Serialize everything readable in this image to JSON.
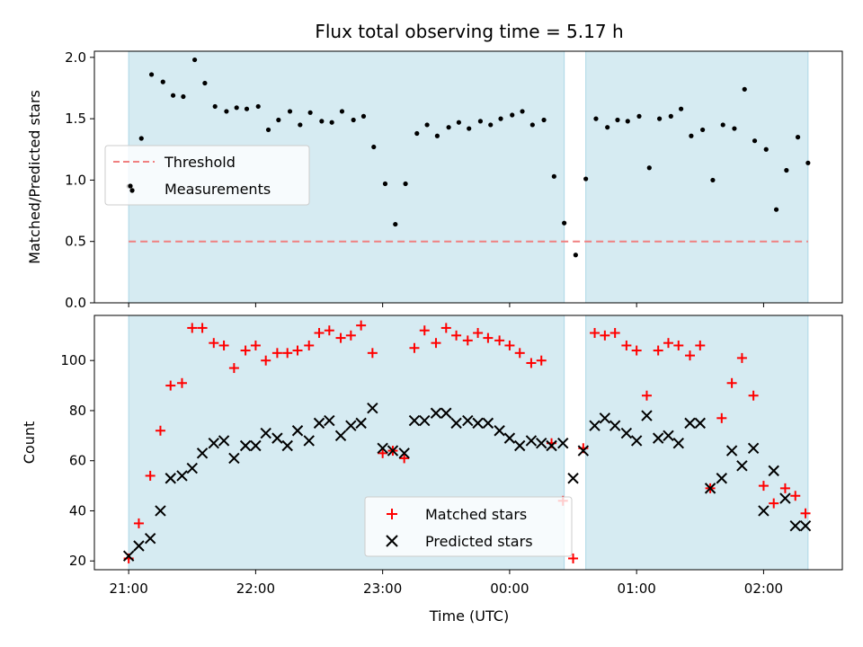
{
  "chart_data": {
    "type": "scatter",
    "title": "Flux total observing time = 5.17 h",
    "xlabel": "Time (UTC)",
    "x_ticks": [
      "21:00",
      "22:00",
      "23:00",
      "00:00",
      "01:00",
      "02:00"
    ],
    "x_tick_hours": [
      0,
      1,
      2,
      3,
      4,
      5
    ],
    "xlim": [
      -0.27,
      5.62
    ],
    "shaded_intervals": [
      [
        0.0,
        3.43
      ],
      [
        3.6,
        5.35
      ]
    ],
    "shade_color": "#add8e6",
    "top_panel": {
      "ylabel": "Matched/Predicted stars",
      "ylim": [
        0,
        2.05
      ],
      "y_ticks": [
        "0.0",
        "0.5",
        "1.0",
        "1.5",
        "2.0"
      ],
      "y_tick_values": [
        0,
        0.5,
        1.0,
        1.5,
        2.0
      ],
      "threshold": {
        "name": "Threshold",
        "value": 0.5,
        "color": "#f08080"
      },
      "measurements": {
        "name": "Measurements",
        "color": "#000000",
        "points": [
          [
            0.0,
            0.95
          ],
          [
            0.03,
            0.92
          ],
          [
            0.1,
            1.34
          ],
          [
            0.18,
            1.86
          ],
          [
            0.27,
            1.8
          ],
          [
            0.35,
            1.69
          ],
          [
            0.43,
            1.68
          ],
          [
            0.52,
            1.98
          ],
          [
            0.6,
            1.79
          ],
          [
            0.68,
            1.6
          ],
          [
            0.77,
            1.56
          ],
          [
            0.85,
            1.59
          ],
          [
            0.93,
            1.58
          ],
          [
            1.02,
            1.6
          ],
          [
            1.1,
            1.41
          ],
          [
            1.18,
            1.49
          ],
          [
            1.27,
            1.56
          ],
          [
            1.35,
            1.45
          ],
          [
            1.43,
            1.55
          ],
          [
            1.52,
            1.48
          ],
          [
            1.6,
            1.47
          ],
          [
            1.68,
            1.56
          ],
          [
            1.77,
            1.49
          ],
          [
            1.85,
            1.52
          ],
          [
            1.93,
            1.27
          ],
          [
            2.02,
            0.97
          ],
          [
            2.1,
            0.64
          ],
          [
            2.18,
            0.97
          ],
          [
            2.27,
            1.38
          ],
          [
            2.35,
            1.45
          ],
          [
            2.43,
            1.36
          ],
          [
            2.52,
            1.43
          ],
          [
            2.6,
            1.47
          ],
          [
            2.68,
            1.42
          ],
          [
            2.77,
            1.48
          ],
          [
            2.85,
            1.45
          ],
          [
            2.93,
            1.5
          ],
          [
            3.02,
            1.53
          ],
          [
            3.1,
            1.56
          ],
          [
            3.18,
            1.45
          ],
          [
            3.27,
            1.49
          ],
          [
            3.35,
            1.03
          ],
          [
            3.43,
            0.65
          ],
          [
            3.52,
            0.39
          ],
          [
            3.6,
            1.01
          ],
          [
            3.68,
            1.5
          ],
          [
            3.77,
            1.43
          ],
          [
            3.85,
            1.49
          ],
          [
            3.93,
            1.48
          ],
          [
            4.02,
            1.52
          ],
          [
            4.1,
            1.1
          ],
          [
            4.18,
            1.5
          ],
          [
            4.27,
            1.52
          ],
          [
            4.35,
            1.58
          ],
          [
            4.43,
            1.36
          ],
          [
            4.52,
            1.41
          ],
          [
            4.6,
            1.0
          ],
          [
            4.68,
            1.45
          ],
          [
            4.77,
            1.42
          ],
          [
            4.85,
            1.74
          ],
          [
            4.93,
            1.32
          ],
          [
            5.02,
            1.25
          ],
          [
            5.1,
            0.76
          ],
          [
            5.18,
            1.08
          ],
          [
            5.27,
            1.35
          ],
          [
            5.35,
            1.14
          ]
        ]
      },
      "legend_location": "center-left"
    },
    "bottom_panel": {
      "ylabel": "Count",
      "ylim": [
        16.5,
        118
      ],
      "y_ticks": [
        "20",
        "40",
        "60",
        "80",
        "100"
      ],
      "y_tick_values": [
        20,
        40,
        60,
        80,
        100
      ],
      "series": [
        {
          "name": "Matched stars",
          "marker": "plus",
          "color": "#ff0000",
          "points": [
            [
              0.0,
              21
            ],
            [
              0.08,
              35
            ],
            [
              0.17,
              54
            ],
            [
              0.25,
              72
            ],
            [
              0.33,
              90
            ],
            [
              0.42,
              91
            ],
            [
              0.5,
              113
            ],
            [
              0.58,
              113
            ],
            [
              0.67,
              107
            ],
            [
              0.75,
              106
            ],
            [
              0.83,
              97
            ],
            [
              0.92,
              104
            ],
            [
              1.0,
              106
            ],
            [
              1.08,
              100
            ],
            [
              1.17,
              103
            ],
            [
              1.25,
              103
            ],
            [
              1.33,
              104
            ],
            [
              1.42,
              106
            ],
            [
              1.5,
              111
            ],
            [
              1.58,
              112
            ],
            [
              1.67,
              109
            ],
            [
              1.75,
              110
            ],
            [
              1.83,
              114
            ],
            [
              1.92,
              103
            ],
            [
              2.0,
              63
            ],
            [
              2.08,
              64
            ],
            [
              2.17,
              61
            ],
            [
              2.25,
              105
            ],
            [
              2.33,
              112
            ],
            [
              2.42,
              107
            ],
            [
              2.5,
              113
            ],
            [
              2.58,
              110
            ],
            [
              2.67,
              108
            ],
            [
              2.75,
              111
            ],
            [
              2.83,
              109
            ],
            [
              2.92,
              108
            ],
            [
              3.0,
              106
            ],
            [
              3.08,
              103
            ],
            [
              3.17,
              99
            ],
            [
              3.25,
              100
            ],
            [
              3.33,
              67
            ],
            [
              3.42,
              44
            ],
            [
              3.5,
              21
            ],
            [
              3.58,
              65
            ],
            [
              3.67,
              111
            ],
            [
              3.75,
              110
            ],
            [
              3.83,
              111
            ],
            [
              3.92,
              106
            ],
            [
              4.0,
              104
            ],
            [
              4.08,
              86
            ],
            [
              4.17,
              104
            ],
            [
              4.25,
              107
            ],
            [
              4.33,
              106
            ],
            [
              4.42,
              102
            ],
            [
              4.5,
              106
            ],
            [
              4.58,
              49
            ],
            [
              4.67,
              77
            ],
            [
              4.75,
              91
            ],
            [
              4.83,
              101
            ],
            [
              4.92,
              86
            ],
            [
              5.0,
              50
            ],
            [
              5.08,
              43
            ],
            [
              5.17,
              49
            ],
            [
              5.25,
              46
            ],
            [
              5.33,
              39
            ]
          ]
        },
        {
          "name": "Predicted stars",
          "marker": "x",
          "color": "#000000",
          "points": [
            [
              0.0,
              22
            ],
            [
              0.08,
              26
            ],
            [
              0.17,
              29
            ],
            [
              0.25,
              40
            ],
            [
              0.33,
              53
            ],
            [
              0.42,
              54
            ],
            [
              0.5,
              57
            ],
            [
              0.58,
              63
            ],
            [
              0.67,
              67
            ],
            [
              0.75,
              68
            ],
            [
              0.83,
              61
            ],
            [
              0.92,
              66
            ],
            [
              1.0,
              66
            ],
            [
              1.08,
              71
            ],
            [
              1.17,
              69
            ],
            [
              1.25,
              66
            ],
            [
              1.33,
              72
            ],
            [
              1.42,
              68
            ],
            [
              1.5,
              75
            ],
            [
              1.58,
              76
            ],
            [
              1.67,
              70
            ],
            [
              1.75,
              74
            ],
            [
              1.83,
              75
            ],
            [
              1.92,
              81
            ],
            [
              2.0,
              65
            ],
            [
              2.08,
              64
            ],
            [
              2.17,
              63
            ],
            [
              2.25,
              76
            ],
            [
              2.33,
              76
            ],
            [
              2.42,
              79
            ],
            [
              2.5,
              79
            ],
            [
              2.58,
              75
            ],
            [
              2.67,
              76
            ],
            [
              2.75,
              75
            ],
            [
              2.83,
              75
            ],
            [
              2.92,
              72
            ],
            [
              3.0,
              69
            ],
            [
              3.08,
              66
            ],
            [
              3.17,
              68
            ],
            [
              3.25,
              67
            ],
            [
              3.33,
              66
            ],
            [
              3.42,
              67
            ],
            [
              3.5,
              53
            ],
            [
              3.58,
              64
            ],
            [
              3.67,
              74
            ],
            [
              3.75,
              77
            ],
            [
              3.83,
              74
            ],
            [
              3.92,
              71
            ],
            [
              4.0,
              68
            ],
            [
              4.08,
              78
            ],
            [
              4.17,
              69
            ],
            [
              4.25,
              70
            ],
            [
              4.33,
              67
            ],
            [
              4.42,
              75
            ],
            [
              4.5,
              75
            ],
            [
              4.58,
              49
            ],
            [
              4.67,
              53
            ],
            [
              4.75,
              64
            ],
            [
              4.83,
              58
            ],
            [
              4.92,
              65
            ],
            [
              5.0,
              40
            ],
            [
              5.08,
              56
            ],
            [
              5.17,
              45
            ],
            [
              5.25,
              34
            ],
            [
              5.33,
              34
            ]
          ]
        }
      ],
      "legend_location": "bottom-center"
    }
  }
}
